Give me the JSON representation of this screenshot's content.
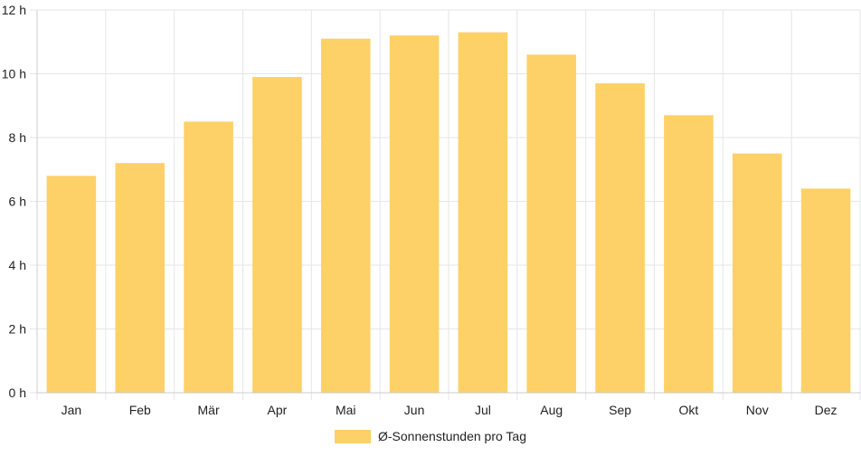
{
  "chart_data": {
    "type": "bar",
    "categories": [
      "Jan",
      "Feb",
      "Mär",
      "Apr",
      "Mai",
      "Jun",
      "Jul",
      "Aug",
      "Sep",
      "Okt",
      "Nov",
      "Dez"
    ],
    "series": [
      {
        "name": "Ø-Sonnenstunden pro Tag",
        "values": [
          6.8,
          7.2,
          8.5,
          9.9,
          11.1,
          11.2,
          11.3,
          10.6,
          9.7,
          8.7,
          7.5,
          6.4
        ]
      }
    ],
    "ylim": [
      0,
      12
    ],
    "yticks": [
      0,
      2,
      4,
      6,
      8,
      10,
      12
    ],
    "y_tick_labels": [
      "0 h",
      "2 h",
      "4 h",
      "6 h",
      "8 h",
      "10 h",
      "12 h"
    ],
    "grid": true,
    "legend": "bottom-center",
    "colors": {
      "bar": "#fdd168",
      "grid": "#e6e6e6",
      "axis": "#cccccc",
      "text": "#222222"
    }
  }
}
